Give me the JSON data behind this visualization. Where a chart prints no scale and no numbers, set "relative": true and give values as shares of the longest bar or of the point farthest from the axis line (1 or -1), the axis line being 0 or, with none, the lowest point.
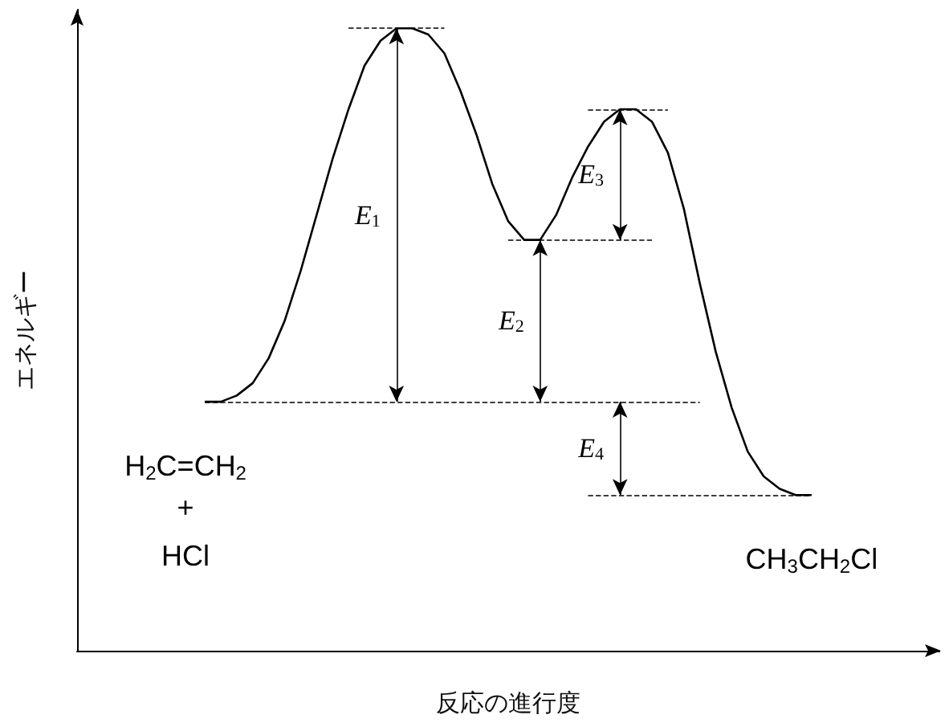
{
  "chart_data": {
    "type": "line",
    "relative": true,
    "xlabel": "反応の進行度",
    "ylabel": "エネルギー",
    "tick_labels": false,
    "grid": false,
    "marker": "none",
    "line_style": "solid",
    "ref_lines": [
      {
        "axis": "y",
        "value": 0.4,
        "line_style": "dashed",
        "color": "#000000"
      },
      {
        "axis": "y",
        "value": 1.0,
        "line_style": "dashed",
        "color": "#000000"
      },
      {
        "axis": "y",
        "value": 0.66,
        "line_style": "dashed",
        "color": "#000000"
      },
      {
        "axis": "y",
        "value": 0.87,
        "line_style": "dashed",
        "color": "#000000"
      },
      {
        "axis": "y",
        "value": 0.25,
        "line_style": "dashed",
        "color": "#000000"
      }
    ],
    "categories": [
      null,
      null,
      null,
      null,
      null,
      null,
      null,
      null,
      null,
      null,
      null,
      null,
      null,
      null,
      null,
      null,
      null,
      null,
      null,
      null,
      null,
      null,
      null,
      null,
      null,
      null,
      null,
      null,
      null,
      null,
      null,
      null,
      null,
      null,
      null,
      null,
      null,
      null,
      null,
      null,
      null,
      null,
      null,
      null,
      null,
      null,
      null,
      null,
      null,
      null,
      null,
      null,
      null,
      null,
      null
    ],
    "series": [
      {
        "color": "#000000",
        "values": [
          null,
          null,
          null,
          null,
          null,
          null,
          null,
          null,
          0.4,
          0.4,
          0.41,
          0.43,
          0.47,
          0.53,
          0.61,
          0.7,
          0.79,
          0.87,
          0.94,
          0.98,
          1.0,
          1.0,
          0.99,
          0.96,
          0.9,
          0.83,
          0.75,
          0.69,
          0.66,
          0.66,
          0.7,
          0.76,
          0.81,
          0.85,
          0.87,
          0.87,
          0.85,
          0.8,
          0.71,
          0.59,
          0.48,
          0.39,
          0.32,
          0.28,
          0.26,
          0.25,
          0.25,
          null,
          null,
          null,
          null,
          null,
          null,
          null,
          null
        ]
      }
    ],
    "annotations": [
      "E$_{1}$",
      "E$_{2}$",
      "E$_{3}$",
      "E$_{4}$",
      "H$_{2}$C=CH$_{2}$",
      "+",
      "HCl",
      "CH$_{3}$CH$_{2}$Cl"
    ]
  }
}
